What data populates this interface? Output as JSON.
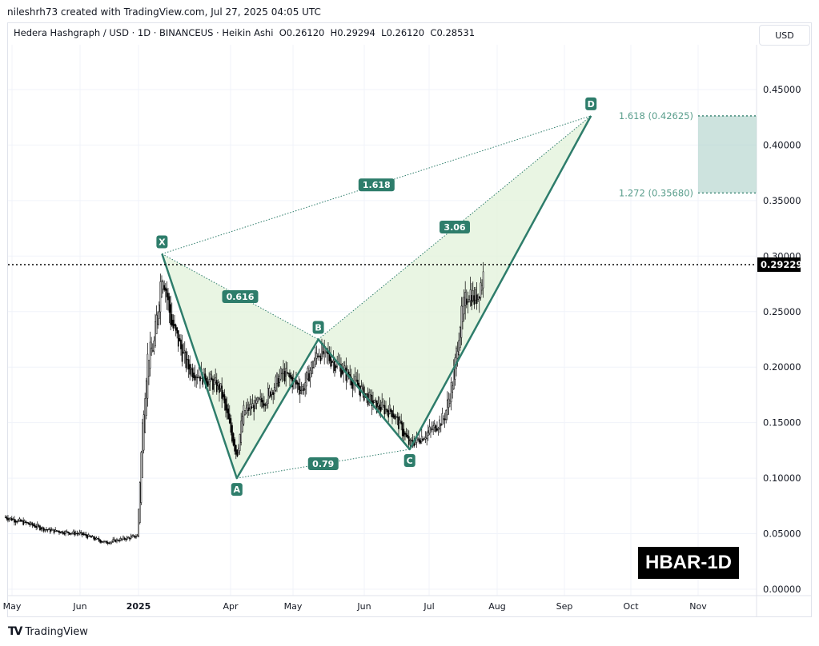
{
  "credit": "nileshrh73 created with TradingView.com, Jul 27, 2025 04:05 UTC",
  "legend": "Hedera Hashgraph / USD · 1D · BINANCEUS · Heikin Ashi  O0.26120  H0.29294  L0.26120  C0.28531",
  "currency_button": "USD",
  "watermark": "HBAR-1D",
  "footer_brand": "TradingView",
  "colors": {
    "pattern": "#2e7d6b",
    "fill": "#e3f2dc",
    "zone": "#b2d4cd",
    "candle": "#000000"
  },
  "chart_data": {
    "type": "candlestick",
    "symbol": "Hedera Hashgraph / USD",
    "interval": "1D",
    "style": "Heikin Ashi",
    "ylim": [
      0,
      0.47
    ],
    "y_ticks": [
      "0.45000",
      "0.40000",
      "0.35000",
      "0.30000",
      "0.25000",
      "0.20000",
      "0.15000",
      "0.10000",
      "0.05000",
      "0.00000"
    ],
    "x_ticks": [
      {
        "label": "May",
        "date": "2024-05-01"
      },
      {
        "label": "Jun",
        "date": "2024-06-01"
      },
      {
        "label": "2025",
        "date": "2025-01-01",
        "bold": true
      },
      {
        "label": "Apr",
        "date": "2025-04-01"
      },
      {
        "label": "May",
        "date": "2025-05-01"
      },
      {
        "label": "Jun",
        "date": "2025-06-01"
      },
      {
        "label": "Jul",
        "date": "2025-07-01"
      },
      {
        "label": "Aug",
        "date": "2025-08-01"
      },
      {
        "label": "Sep",
        "date": "2025-09-01"
      },
      {
        "label": "Oct",
        "date": "2025-10-01"
      },
      {
        "label": "Nov",
        "date": "2025-11-01"
      }
    ],
    "last_price": "0.29229",
    "price_path": [
      [
        "2024-04-28",
        0.065
      ],
      [
        "2024-05-18",
        0.053
      ],
      [
        "2024-06-01",
        0.05
      ],
      [
        "2024-09-01",
        0.042
      ],
      [
        "2024-12-28",
        0.048
      ],
      [
        "2025-01-05",
        0.15
      ],
      [
        "2025-01-10",
        0.21
      ],
      [
        "2025-01-16",
        0.22
      ],
      [
        "2025-01-24",
        0.29
      ],
      [
        "2025-02-02",
        0.24
      ],
      [
        "2025-02-18",
        0.2
      ],
      [
        "2025-03-08",
        0.19
      ],
      [
        "2025-03-22",
        0.18
      ],
      [
        "2025-04-04",
        0.12
      ],
      [
        "2025-04-07",
        0.16
      ],
      [
        "2025-04-17",
        0.17
      ],
      [
        "2025-04-26",
        0.195
      ],
      [
        "2025-05-05",
        0.18
      ],
      [
        "2025-05-12",
        0.215
      ],
      [
        "2025-05-19",
        0.205
      ],
      [
        "2025-05-26",
        0.19
      ],
      [
        "2025-06-06",
        0.165
      ],
      [
        "2025-06-14",
        0.16
      ],
      [
        "2025-06-22",
        0.13
      ],
      [
        "2025-07-03",
        0.145
      ],
      [
        "2025-07-08",
        0.155
      ],
      [
        "2025-07-12",
        0.19
      ],
      [
        "2025-07-15",
        0.24
      ],
      [
        "2025-07-19",
        0.27
      ],
      [
        "2025-07-22",
        0.26
      ],
      [
        "2025-07-26",
        0.285
      ]
    ],
    "harmonic": {
      "points": [
        {
          "label": "X",
          "date": "2025-01-24",
          "price": 0.302
        },
        {
          "label": "A",
          "date": "2025-04-04",
          "price": 0.1
        },
        {
          "label": "B",
          "date": "2025-05-12",
          "price": 0.225
        },
        {
          "label": "C",
          "date": "2025-06-22",
          "price": 0.126
        },
        {
          "label": "D",
          "date": "2025-09-13",
          "price": 0.4263
        }
      ],
      "ratios": [
        {
          "label": "1.618",
          "from": "X",
          "to": "D"
        },
        {
          "label": "3.06",
          "from": "B",
          "to": "D"
        },
        {
          "label": "0.616",
          "from": "X",
          "to": "B"
        },
        {
          "label": "0.79",
          "from": "A",
          "to": "C"
        }
      ]
    },
    "target_zone": {
      "upper": {
        "label": "1.618 (0.42625)",
        "price": 0.42625
      },
      "lower": {
        "label": "1.272 (0.35680)",
        "price": 0.3568
      }
    }
  }
}
